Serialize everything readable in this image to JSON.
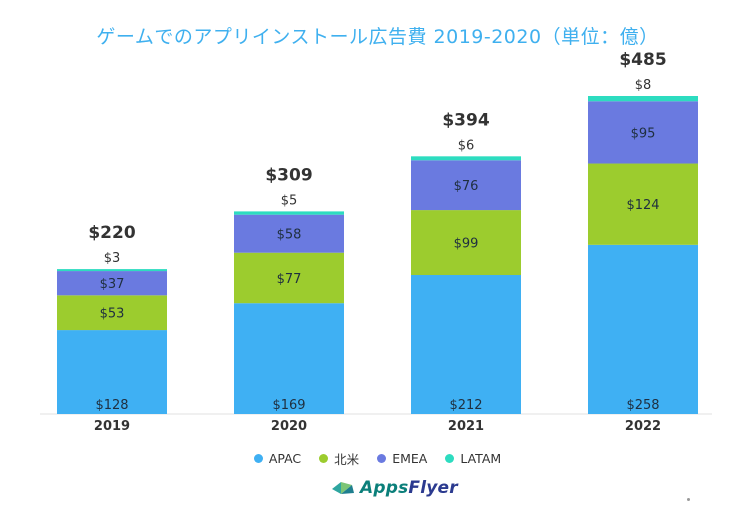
{
  "header": {
    "title": "ゲームでのアプリインストール広告費 2019-2020（単位：億）"
  },
  "chart_data": {
    "type": "bar",
    "stacked": true,
    "title": "ゲームでのアプリインストール広告費 2019-2020（単位：億）",
    "categories": [
      "2019",
      "2020",
      "2021",
      "2022"
    ],
    "series": [
      {
        "name": "APAC",
        "color": "#3fb0f3",
        "values": [
          128,
          169,
          212,
          258
        ],
        "labels": [
          "$128",
          "$169",
          "$212",
          "$258"
        ]
      },
      {
        "name": "北米",
        "color": "#9ccc2e",
        "values": [
          53,
          77,
          99,
          124
        ],
        "labels": [
          "$53",
          "$77",
          "$99",
          "$124"
        ]
      },
      {
        "name": "EMEA",
        "color": "#6a7ae0",
        "values": [
          37,
          58,
          76,
          95
        ],
        "labels": [
          "$37",
          "$58",
          "$76",
          "$95"
        ]
      },
      {
        "name": "LATAM",
        "color": "#2ddcc0",
        "values": [
          3,
          5,
          6,
          8
        ],
        "labels": [
          "$3",
          "$5",
          "$6",
          "$8"
        ]
      }
    ],
    "totals": [
      220,
      309,
      394,
      485
    ],
    "total_labels": [
      "$220",
      "$309",
      "$394",
      "$485"
    ],
    "ylim": [
      0,
      520
    ],
    "xlabel": "",
    "ylabel": "",
    "legend_position": "bottom-center"
  },
  "legend": [
    {
      "name": "APAC",
      "color": "#3fb0f3"
    },
    {
      "name": "北米",
      "color": "#9ccc2e"
    },
    {
      "name": "EMEA",
      "color": "#6a7ae0"
    },
    {
      "name": "LATAM",
      "color": "#2ddcc0"
    }
  ],
  "logo": {
    "brand_part1": "Apps",
    "brand_part2": "Flyer"
  }
}
